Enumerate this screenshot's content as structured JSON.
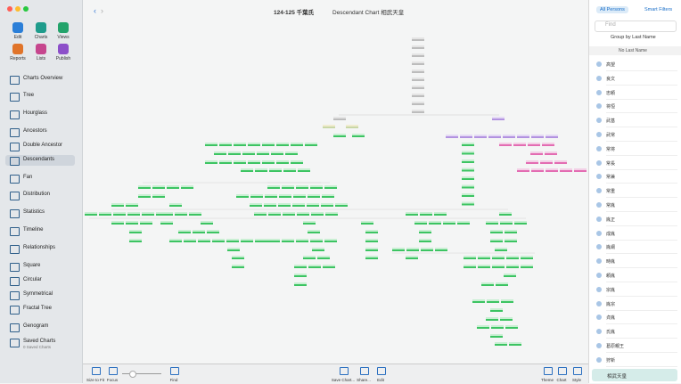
{
  "window": {
    "title": "124-125 千葉氏",
    "chart_title": "Descendant Chart 相武天皇"
  },
  "sidebar": {
    "actions": [
      "Edit",
      "Charts",
      "Views",
      "Reports",
      "Lists",
      "Publish"
    ],
    "items": [
      "Charts Overview",
      "Tree",
      "Hourglass",
      "Ancestors",
      "Double Ancestor",
      "Descendants",
      "Fan",
      "Distribution",
      "Statistics",
      "Timeline",
      "Relationships",
      "Square",
      "Circular",
      "Symmetrical",
      "Fractal Tree",
      "Genogram",
      "Saved Charts"
    ],
    "saved_subtitle": "0 Saved Charts"
  },
  "toolbar": [
    "Size to Fit",
    "Focus",
    "Find",
    "Save Chart...",
    "Share...",
    "Edit",
    "Theme",
    "Chart",
    "Style"
  ],
  "persons": {
    "tabs": [
      "All Persons",
      "Smart Filters"
    ],
    "search_placeholder": "Find",
    "group_by": "Group by Last Name",
    "section": "No Last Name",
    "names": [
      "高望",
      "良文",
      "忠頼",
      "将恒",
      "武基",
      "武常",
      "常将",
      "常長",
      "常兼",
      "常重",
      "常胤",
      "胤正",
      "成胤",
      "胤綱",
      "時胤",
      "頼胤",
      "宗胤",
      "胤宗",
      "貞胤",
      "氏胤",
      "葛原親王",
      "狩新"
    ],
    "selected": "相武天皇"
  }
}
